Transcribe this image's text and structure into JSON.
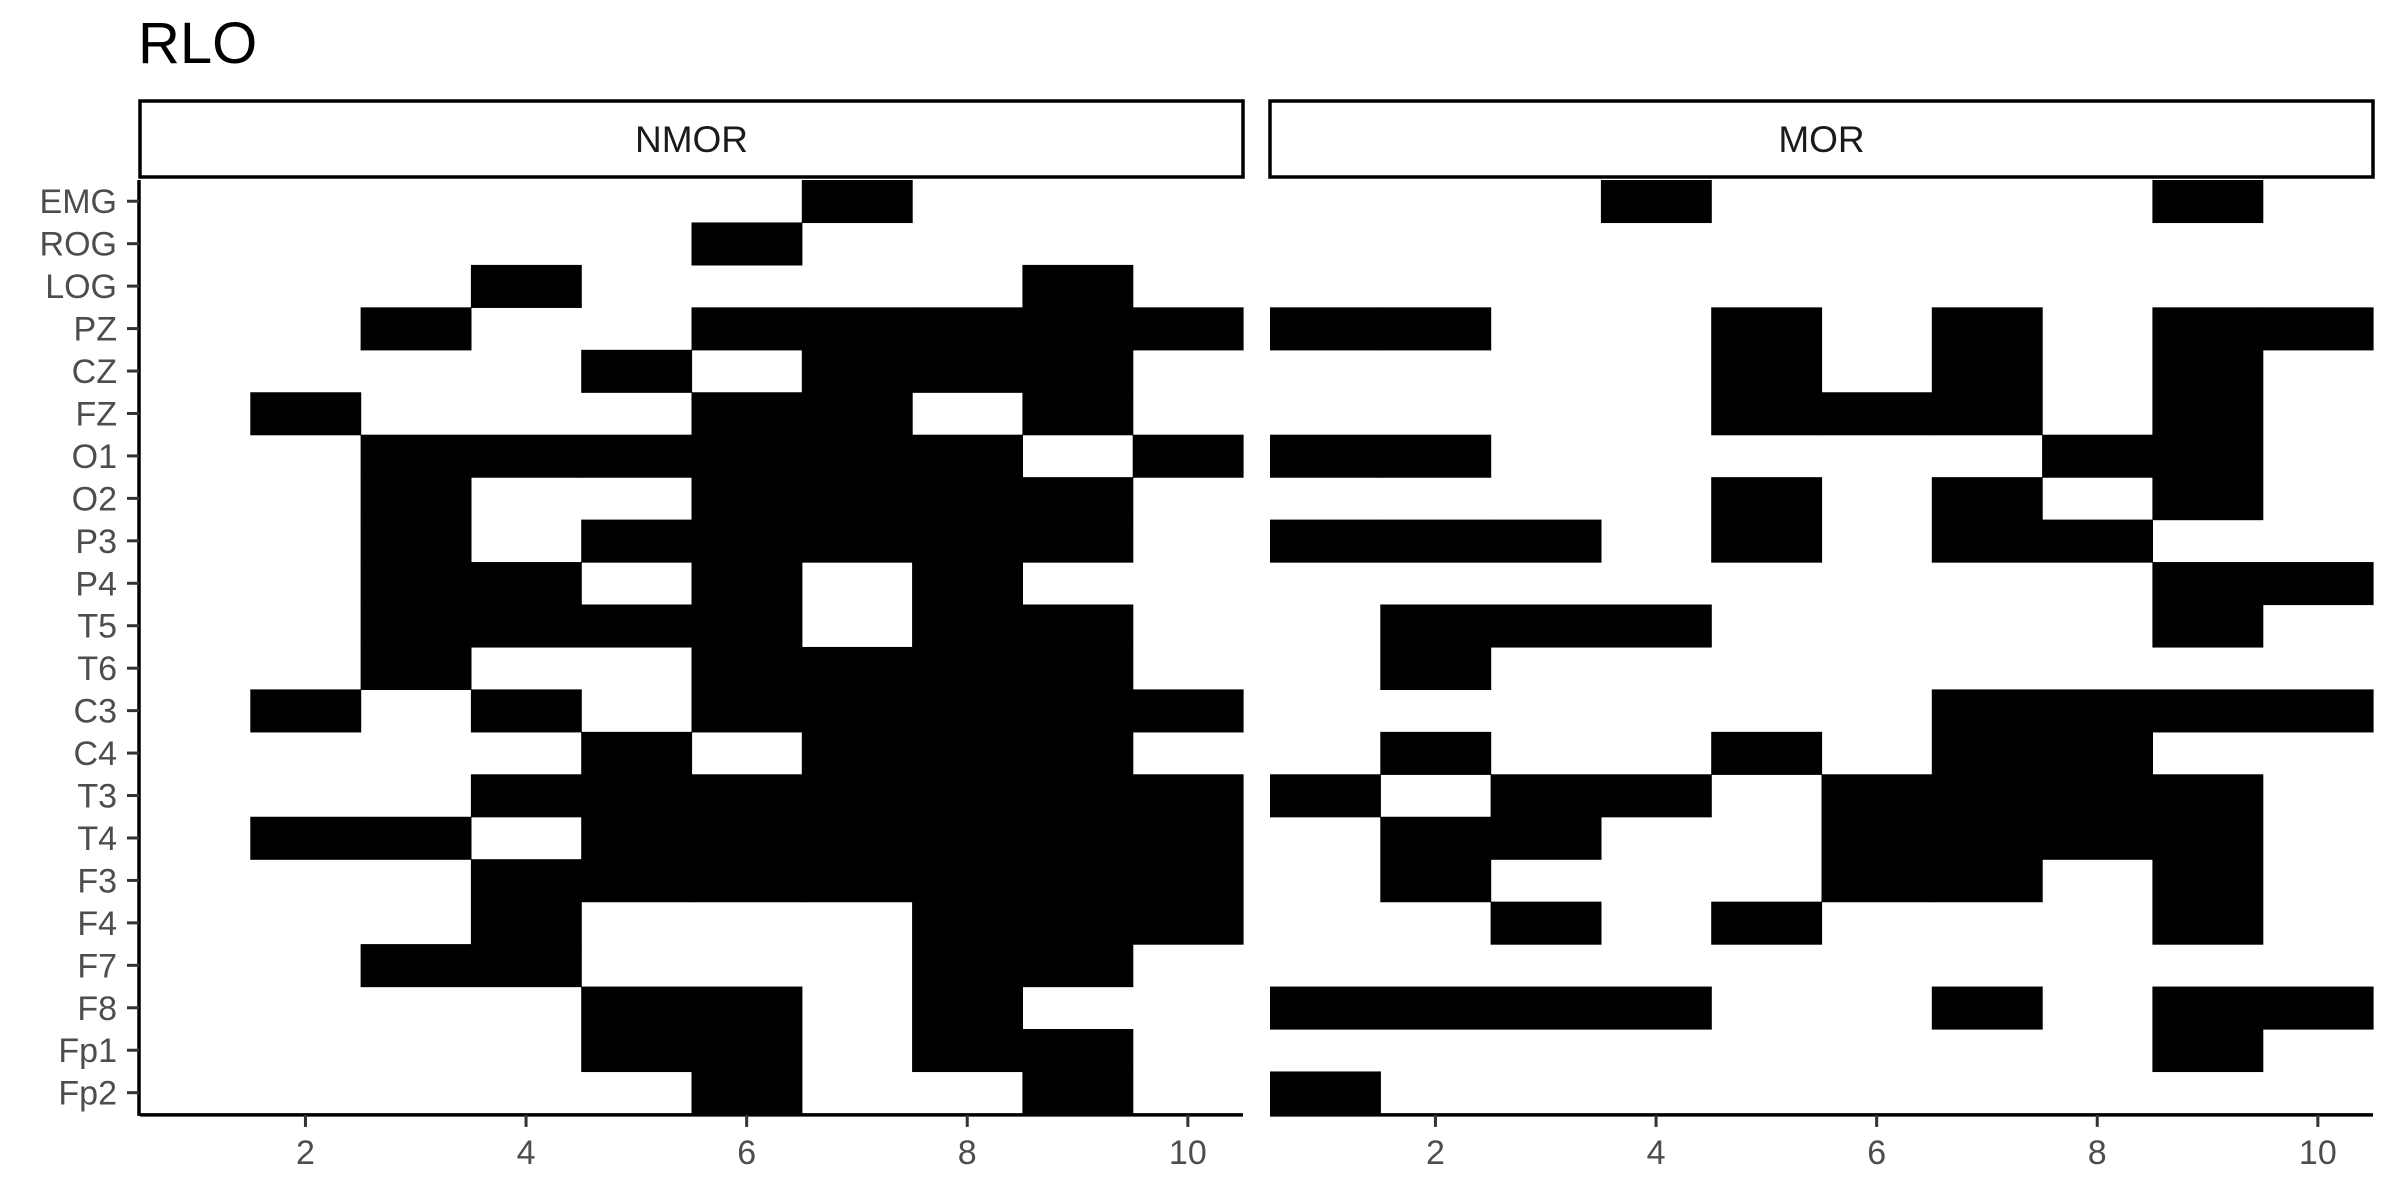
{
  "chart_data": {
    "type": "heatmap",
    "title": "RLO",
    "xlabel": "",
    "ylabel": "",
    "x_range": [
      0.5,
      10.5
    ],
    "x_ticks": [
      2,
      4,
      6,
      8,
      10
    ],
    "legend": "none",
    "grid": false,
    "fill_color": "#000000",
    "y_categories": [
      "EMG",
      "ROG",
      "LOG",
      "PZ",
      "CZ",
      "FZ",
      "O1",
      "O2",
      "P3",
      "P4",
      "T5",
      "T6",
      "C3",
      "C4",
      "T3",
      "T4",
      "F3",
      "F4",
      "F7",
      "F8",
      "Fp1",
      "Fp2"
    ],
    "panels": [
      {
        "name": "NMOR",
        "cells": {
          "EMG": [
            7
          ],
          "ROG": [
            6
          ],
          "LOG": [
            4,
            9
          ],
          "PZ": [
            3,
            6,
            7,
            8,
            9,
            10
          ],
          "CZ": [
            5,
            7,
            8,
            9
          ],
          "FZ": [
            2,
            6,
            7,
            9
          ],
          "O1": [
            3,
            4,
            5,
            6,
            7,
            8,
            10
          ],
          "O2": [
            3,
            6,
            7,
            8,
            9
          ],
          "P3": [
            3,
            5,
            6,
            7,
            8,
            9
          ],
          "P4": [
            3,
            4,
            6,
            8
          ],
          "T5": [
            3,
            4,
            5,
            6,
            8,
            9
          ],
          "T6": [
            3,
            6,
            7,
            8,
            9
          ],
          "C3": [
            2,
            4,
            6,
            7,
            8,
            9,
            10
          ],
          "C4": [
            5,
            7,
            8,
            9
          ],
          "T3": [
            4,
            5,
            6,
            7,
            8,
            9,
            10
          ],
          "T4": [
            2,
            3,
            5,
            6,
            7,
            8,
            9,
            10
          ],
          "F3": [
            4,
            5,
            6,
            7,
            8,
            9,
            10
          ],
          "F4": [
            4,
            8,
            9,
            10
          ],
          "F7": [
            3,
            4,
            8,
            9
          ],
          "F8": [
            5,
            6,
            8
          ],
          "Fp1": [
            5,
            6,
            8,
            9
          ],
          "Fp2": [
            6,
            9
          ]
        }
      },
      {
        "name": "MOR",
        "cells": {
          "EMG": [
            4,
            9
          ],
          "ROG": [],
          "LOG": [],
          "PZ": [
            1,
            2,
            5,
            7,
            9,
            10
          ],
          "CZ": [
            5,
            7,
            9
          ],
          "FZ": [
            5,
            6,
            7,
            9
          ],
          "O1": [
            1,
            2,
            8,
            9
          ],
          "O2": [
            5,
            7,
            9
          ],
          "P3": [
            1,
            2,
            3,
            5,
            7,
            8
          ],
          "P4": [
            9,
            10
          ],
          "T5": [
            2,
            3,
            4,
            9
          ],
          "T6": [
            2
          ],
          "C3": [
            7,
            8,
            9,
            10
          ],
          "C4": [
            2,
            5,
            7,
            8
          ],
          "T3": [
            1,
            3,
            4,
            6,
            7,
            8,
            9
          ],
          "T4": [
            2,
            3,
            6,
            7,
            8,
            9
          ],
          "F3": [
            2,
            6,
            7,
            9
          ],
          "F4": [
            3,
            5,
            9
          ],
          "F7": [],
          "F8": [
            1,
            2,
            3,
            4,
            7,
            9,
            10
          ],
          "Fp1": [
            9
          ],
          "Fp2": [
            1
          ]
        }
      }
    ]
  }
}
